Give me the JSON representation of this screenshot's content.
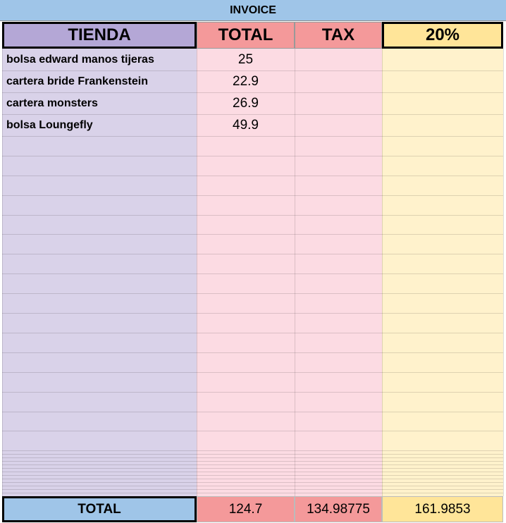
{
  "header": {
    "title": "INVOICE"
  },
  "table": {
    "columns": [
      "TIENDA",
      "TOTAL",
      "TAX",
      "20%"
    ],
    "rows": [
      [
        "bolsa edward manos tijeras",
        25
      ],
      [
        "cartera bride Frankenstein",
        22.9
      ],
      [
        "cartera monsters",
        26.9
      ],
      [
        "bolsa Loungefly",
        49.9
      ]
    ],
    "footer": [
      "TOTAL",
      124.7,
      134.98775,
      161.9853
    ]
  }
}
